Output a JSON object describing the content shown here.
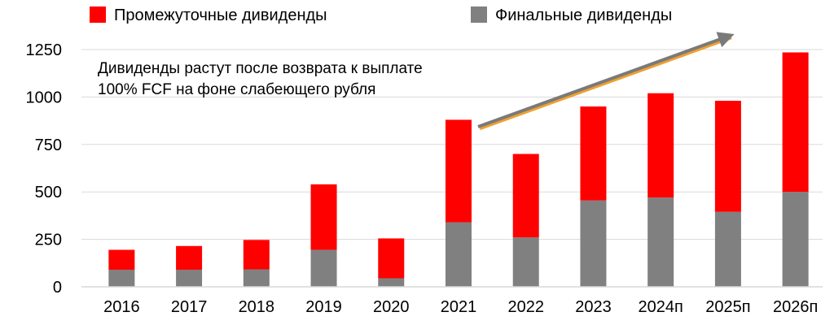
{
  "chart_data": {
    "type": "bar",
    "stacked": true,
    "categories": [
      "2016",
      "2017",
      "2018",
      "2019",
      "2020",
      "2021",
      "2022",
      "2023",
      "2024п",
      "2025п",
      "2026п"
    ],
    "series": [
      {
        "name": "Финальные дивиденды",
        "color": "#808080",
        "values": [
          90,
          90,
          92,
          195,
          45,
          340,
          260,
          455,
          470,
          395,
          500
        ]
      },
      {
        "name": "Промежуточные дивиденды",
        "color": "#ff0000",
        "values": [
          105,
          125,
          155,
          345,
          210,
          540,
          440,
          495,
          550,
          585,
          735
        ]
      }
    ],
    "ylim": [
      0,
      1250
    ],
    "yticks": [
      "0",
      "250",
      "500",
      "750",
      "1000",
      "1250"
    ],
    "grid": true,
    "legend_position": "top",
    "annotation": "Дивиденды растут после возврата к выплате 100% FCF на фоне слабеющего рубля",
    "trend_arrow": true
  }
}
